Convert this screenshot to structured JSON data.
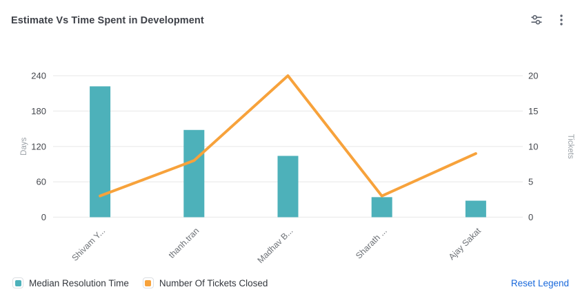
{
  "header": {
    "title": "Estimate Vs Time Spent in Development",
    "controls": {
      "sliders_icon": "chart-settings",
      "kebab_icon": "more-options"
    }
  },
  "chart_data": {
    "type": "combo-bar-line",
    "categories": [
      "Shivam Y...",
      "thanh.tran",
      "Madhav B...",
      "Sharath ...",
      "Ajay Sakat"
    ],
    "series": [
      {
        "name": "Median Resolution Time",
        "type": "bar",
        "axis": "left",
        "color": "#4DB1BA",
        "values": [
          222,
          148,
          104,
          34,
          28
        ]
      },
      {
        "name": "Number Of Tickets Closed",
        "type": "line",
        "axis": "right",
        "color": "#F7A23B",
        "values": [
          3,
          8,
          20,
          3,
          9
        ]
      }
    ],
    "left_axis": {
      "label": "Days",
      "min": 0,
      "max": 240,
      "ticks": [
        0,
        60,
        120,
        180,
        240
      ]
    },
    "right_axis": {
      "label": "Tickets",
      "min": 0,
      "max": 20,
      "ticks": [
        0,
        5,
        10,
        15,
        20
      ]
    },
    "grid": true,
    "legend_position": "bottom",
    "colors": {
      "gridline": "#ececec",
      "tick_label": "#44474d",
      "category_label": "#6e7277",
      "axis_name": "#9aa0a6"
    }
  },
  "legend": {
    "items": [
      {
        "label": "Median Resolution Time",
        "color": "#4DB1BA"
      },
      {
        "label": "Number Of Tickets Closed",
        "color": "#F7A23B"
      }
    ],
    "reset_label": "Reset Legend",
    "reset_color": "#1868DB"
  }
}
